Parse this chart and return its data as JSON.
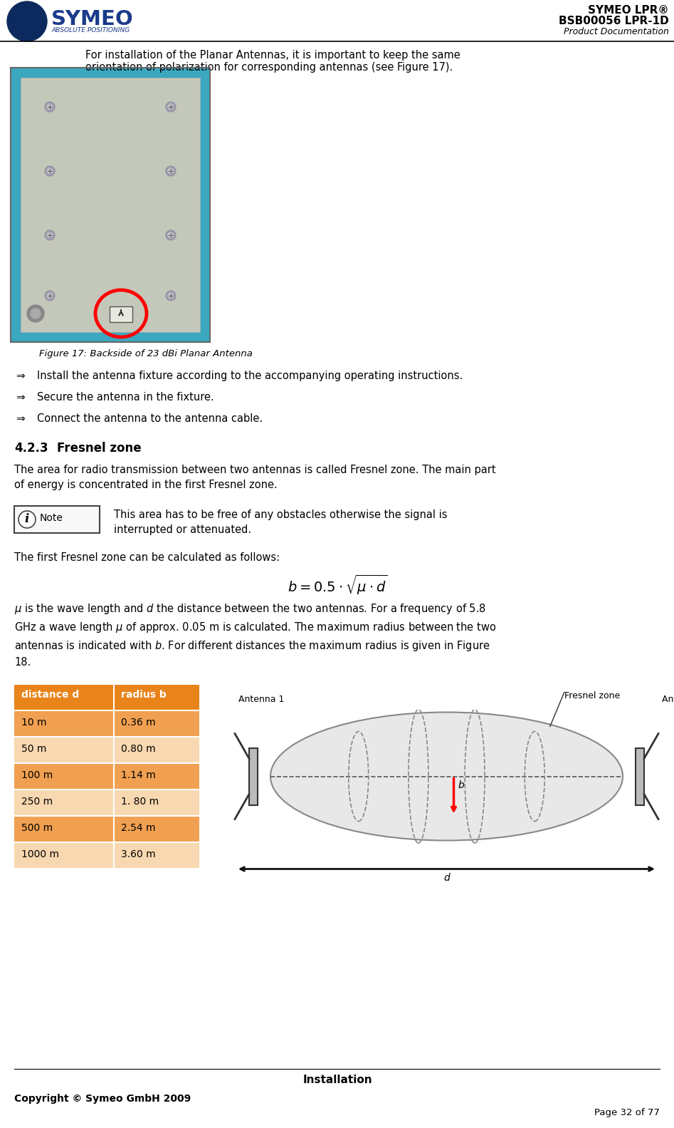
{
  "title_right_line1": "SYMEO LPR®",
  "title_right_line2": "BSB00056 LPR-1D",
  "title_right_line3": "Product Documentation",
  "intro_text": "For installation of the Planar Antennas, it is important to keep the same\norientation of polarization for corresponding antennas (see Figure 17).",
  "figure_caption": "Figure 17: Backside of 23 dBi Planar Antenna",
  "bullet_items": [
    "Install the antenna fixture according to the accompanying operating instructions.",
    "Secure the antenna in the fixture.",
    "Connect the antenna to the antenna cable."
  ],
  "section_num": "4.2.3",
  "section_title": "Fresnel zone",
  "fresnel_para1": "The area for radio transmission between two antennas is called Fresnel zone. The main part\nof energy is concentrated in the first Fresnel zone.",
  "fresnel_para2": "The first Fresnel zone can be calculated as follows:",
  "formula": "$b = 0.5 \\cdot \\sqrt{\\mu \\cdot d}$",
  "fresnel_para3": "$\\mu$ is the wave length and $d$ the distance between the two antennas. For a frequency of 5.8\nGHz a wave length $\\mu$ of approx. 0.05 m is calculated. The maximum radius between the two\nantennas is indicated with $b$. For different distances the maximum radius is given in Figure\n18.",
  "table_header": [
    "distance d",
    "radius b"
  ],
  "table_data": [
    [
      "10 m",
      "0.36 m"
    ],
    [
      "50 m",
      "0.80 m"
    ],
    [
      "100 m",
      "1.14 m"
    ],
    [
      "250 m",
      "1. 80 m"
    ],
    [
      "500 m",
      "2.54 m"
    ],
    [
      "1000 m",
      "3.60 m"
    ]
  ],
  "table_header_bg": "#E8841A",
  "table_row_bg_dark": "#F0A050",
  "table_row_bg_light": "#F8D8B0",
  "footer_text": "Installation",
  "copyright_text": "Copyright © Symeo GmbH 2009",
  "page_text": "Page 32 of 77",
  "bg_color": "#FFFFFF",
  "text_color": "#000000",
  "teal_color": "#3BA8C0",
  "plate_color": "#C8CBBC",
  "note_box_color": "#F0F0F0"
}
